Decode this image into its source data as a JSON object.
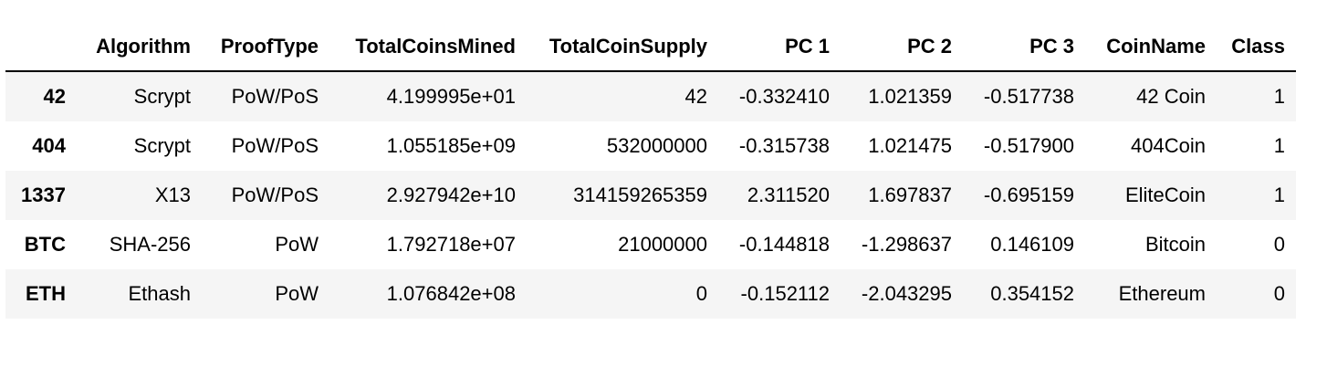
{
  "table": {
    "columns": [
      "",
      "Algorithm",
      "ProofType",
      "TotalCoinsMined",
      "TotalCoinSupply",
      "PC 1",
      "PC 2",
      "PC 3",
      "CoinName",
      "Class"
    ],
    "rows": [
      {
        "index": "42",
        "cells": [
          "Scrypt",
          "PoW/PoS",
          "4.199995e+01",
          "42",
          "-0.332410",
          "1.021359",
          "-0.517738",
          "42 Coin",
          "1"
        ]
      },
      {
        "index": "404",
        "cells": [
          "Scrypt",
          "PoW/PoS",
          "1.055185e+09",
          "532000000",
          "-0.315738",
          "1.021475",
          "-0.517900",
          "404Coin",
          "1"
        ]
      },
      {
        "index": "1337",
        "cells": [
          "X13",
          "PoW/PoS",
          "2.927942e+10",
          "314159265359",
          "2.311520",
          "1.697837",
          "-0.695159",
          "EliteCoin",
          "1"
        ]
      },
      {
        "index": "BTC",
        "cells": [
          "SHA-256",
          "PoW",
          "1.792718e+07",
          "21000000",
          "-0.144818",
          "-1.298637",
          "0.146109",
          "Bitcoin",
          "0"
        ]
      },
      {
        "index": "ETH",
        "cells": [
          "Ethash",
          "PoW",
          "1.076842e+08",
          "0",
          "-0.152112",
          "-2.043295",
          "0.354152",
          "Ethereum",
          "0"
        ]
      }
    ]
  },
  "colors": {
    "stripe": "#f5f5f5",
    "background": "#ffffff",
    "header_rule": "#000000"
  }
}
